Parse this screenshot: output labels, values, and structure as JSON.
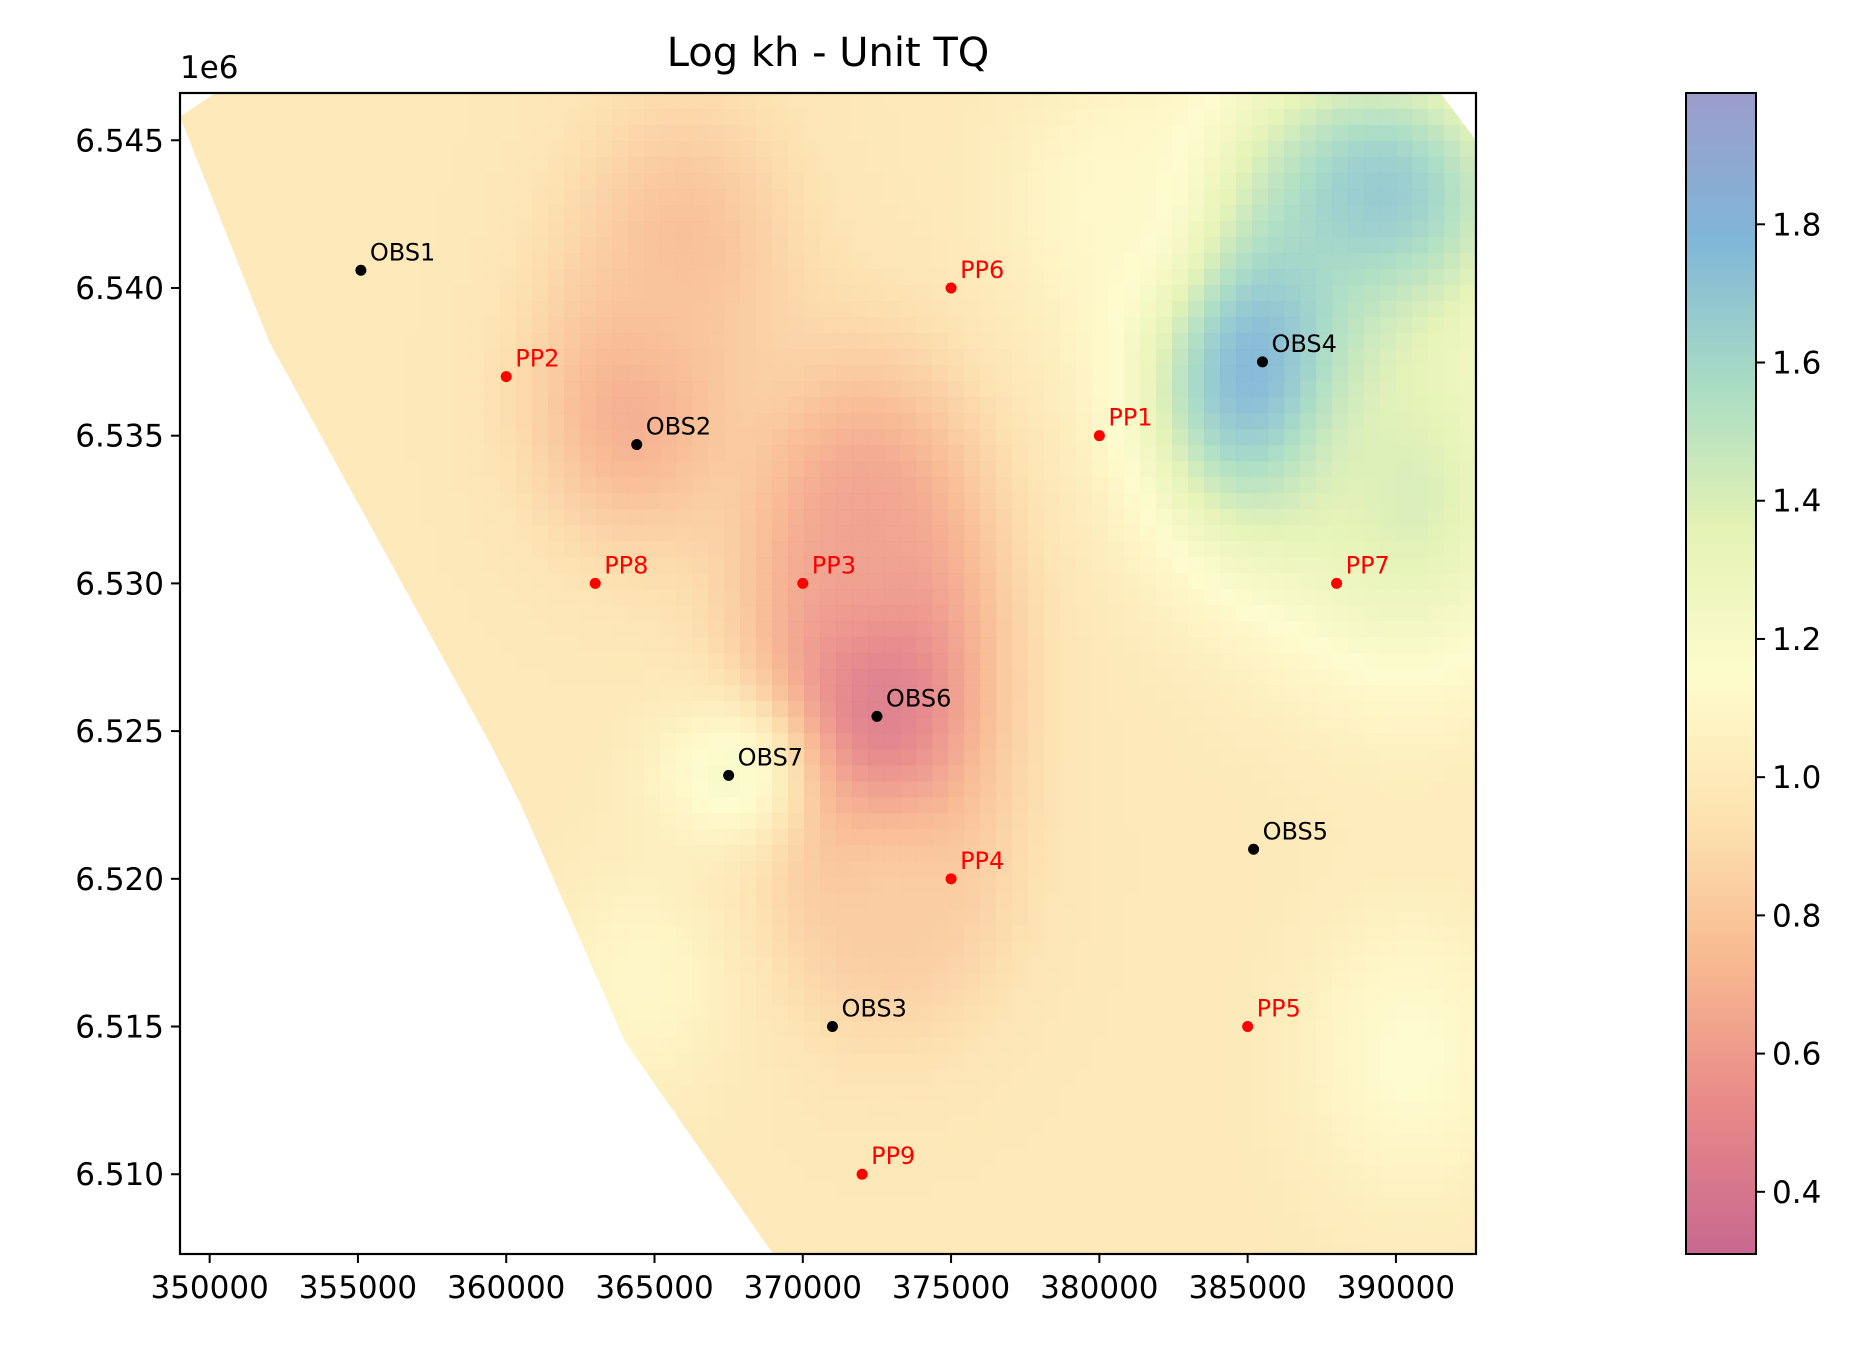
{
  "chart_data": {
    "type": "scatter",
    "title": "Log kh - Unit TQ",
    "xlabel": "",
    "ylabel": "",
    "xlim": [
      349000,
      392700
    ],
    "ylim": [
      6507300,
      6546600
    ],
    "y_offset_label": "1e6",
    "x_ticks": [
      {
        "value": 350000,
        "label": "350000"
      },
      {
        "value": 355000,
        "label": "355000"
      },
      {
        "value": 360000,
        "label": "360000"
      },
      {
        "value": 365000,
        "label": "365000"
      },
      {
        "value": 370000,
        "label": "370000"
      },
      {
        "value": 375000,
        "label": "375000"
      },
      {
        "value": 380000,
        "label": "380000"
      },
      {
        "value": 385000,
        "label": "385000"
      },
      {
        "value": 390000,
        "label": "390000"
      }
    ],
    "y_ticks": [
      {
        "value": 6510000,
        "label": "6.510"
      },
      {
        "value": 6515000,
        "label": "6.515"
      },
      {
        "value": 6520000,
        "label": "6.520"
      },
      {
        "value": 6525000,
        "label": "6.525"
      },
      {
        "value": 6530000,
        "label": "6.530"
      },
      {
        "value": 6535000,
        "label": "6.535"
      },
      {
        "value": 6540000,
        "label": "6.540"
      },
      {
        "value": 6545000,
        "label": "6.545"
      }
    ],
    "grid": false,
    "colorbar": {
      "range": [
        0.31,
        1.99
      ],
      "ticks": [
        {
          "value": 0.4,
          "label": "0.4"
        },
        {
          "value": 0.6,
          "label": "0.6"
        },
        {
          "value": 0.8,
          "label": "0.8"
        },
        {
          "value": 1.0,
          "label": "1.0"
        },
        {
          "value": 1.2,
          "label": "1.2"
        },
        {
          "value": 1.4,
          "label": "1.4"
        },
        {
          "value": 1.6,
          "label": "1.6"
        },
        {
          "value": 1.8,
          "label": "1.8"
        }
      ],
      "colors": [
        "#c86890",
        "#e88888",
        "#f8b890",
        "#fde3b0",
        "#fefccc",
        "#e4f2b4",
        "#a8dcc4",
        "#80b6d8",
        "#9c9ccc"
      ]
    },
    "domain_outline": [
      [
        349000,
        6545800
      ],
      [
        350200,
        6546600
      ],
      [
        391500,
        6546600
      ],
      [
        392700,
        6545000
      ],
      [
        392700,
        6507300
      ],
      [
        369000,
        6507300
      ],
      [
        364000,
        6514500
      ],
      [
        360500,
        6522500
      ],
      [
        359500,
        6524500
      ],
      [
        352000,
        6538200
      ]
    ],
    "field_background": 0.98,
    "field_blobs": [
      {
        "x": 372500,
        "y": 6526000,
        "value": 0.33,
        "sx": 2600,
        "sy": 4800
      },
      {
        "x": 372000,
        "y": 6532000,
        "value": 0.62,
        "sx": 2600,
        "sy": 3800
      },
      {
        "x": 364300,
        "y": 6536000,
        "value": 0.66,
        "sx": 2400,
        "sy": 3200
      },
      {
        "x": 366000,
        "y": 6541500,
        "value": 0.76,
        "sx": 2600,
        "sy": 3600
      },
      {
        "x": 373000,
        "y": 6519000,
        "value": 0.82,
        "sx": 2600,
        "sy": 3000
      },
      {
        "x": 385500,
        "y": 6537500,
        "value": 1.9,
        "sx": 2800,
        "sy": 4200
      },
      {
        "x": 389500,
        "y": 6543000,
        "value": 1.7,
        "sx": 3500,
        "sy": 3500
      },
      {
        "x": 390500,
        "y": 6533000,
        "value": 1.4,
        "sx": 3200,
        "sy": 4500
      },
      {
        "x": 380500,
        "y": 6543000,
        "value": 1.12,
        "sx": 2500,
        "sy": 3000
      },
      {
        "x": 367500,
        "y": 6523500,
        "value": 1.2,
        "sx": 1800,
        "sy": 1800
      },
      {
        "x": 364500,
        "y": 6516500,
        "value": 1.1,
        "sx": 2200,
        "sy": 2800
      },
      {
        "x": 390500,
        "y": 6514000,
        "value": 1.15,
        "sx": 2500,
        "sy": 3500
      }
    ],
    "obs_points": [
      {
        "name": "OBS1",
        "x": 355100,
        "y": 6540600
      },
      {
        "name": "OBS2",
        "x": 364400,
        "y": 6534700
      },
      {
        "name": "OBS3",
        "x": 371000,
        "y": 6515000
      },
      {
        "name": "OBS4",
        "x": 385500,
        "y": 6537500
      },
      {
        "name": "OBS5",
        "x": 385200,
        "y": 6521000
      },
      {
        "name": "OBS6",
        "x": 372500,
        "y": 6525500
      },
      {
        "name": "OBS7",
        "x": 367500,
        "y": 6523500
      }
    ],
    "pilot_points": [
      {
        "name": "PP1",
        "x": 380000,
        "y": 6535000
      },
      {
        "name": "PP2",
        "x": 360000,
        "y": 6537000
      },
      {
        "name": "PP3",
        "x": 370000,
        "y": 6530000
      },
      {
        "name": "PP4",
        "x": 375000,
        "y": 6520000
      },
      {
        "name": "PP5",
        "x": 385000,
        "y": 6515000
      },
      {
        "name": "PP6",
        "x": 375000,
        "y": 6540000
      },
      {
        "name": "PP7",
        "x": 388000,
        "y": 6530000
      },
      {
        "name": "PP8",
        "x": 363000,
        "y": 6530000
      },
      {
        "name": "PP9",
        "x": 372000,
        "y": 6510000
      }
    ],
    "obs_color": "#000000",
    "pp_color": "#ff0000"
  }
}
